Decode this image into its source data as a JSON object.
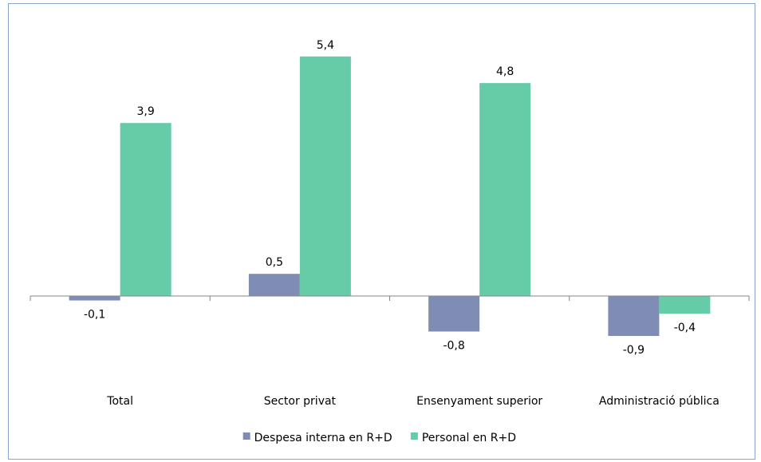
{
  "chart_data": {
    "type": "bar",
    "categories": [
      "Total",
      "Sector privat",
      "Ensenyament superior",
      "Administració pública"
    ],
    "series": [
      {
        "name": "Despesa interna en R+D",
        "values": [
          -0.1,
          0.5,
          -0.8,
          -0.9
        ],
        "labels": [
          "-0,1",
          "0,5",
          "-0,8",
          "-0,9"
        ],
        "color": "#7f8db5"
      },
      {
        "name": "Personal en R+D",
        "values": [
          3.9,
          5.4,
          4.8,
          -0.4
        ],
        "labels": [
          "3,9",
          "5,4",
          "4,8",
          "-0,4"
        ],
        "color": "#66cca8"
      }
    ],
    "legend_position": "bottom",
    "grid": false,
    "axis_color": "#868686"
  }
}
